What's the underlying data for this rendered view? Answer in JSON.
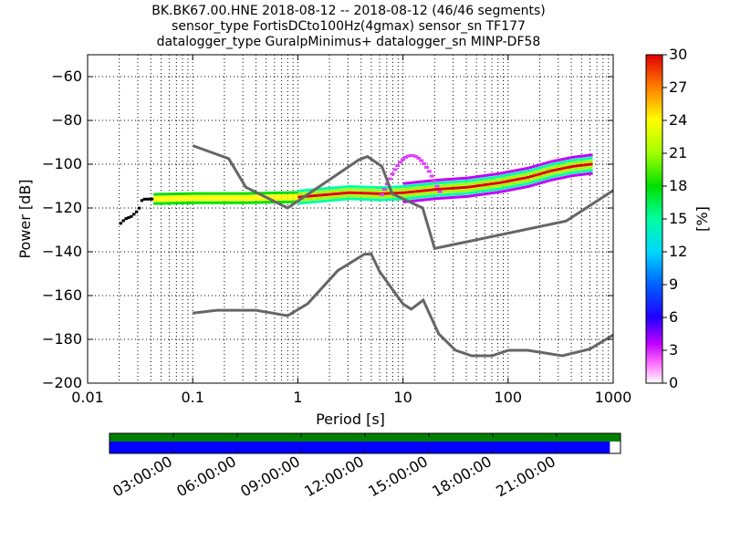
{
  "title_lines": [
    "BK.BK67.00.HNE   2018-08-12 -- 2018-08-12  (46/46 segments)",
    "sensor_type FortisDCto100Hz(4gmax) sensor_sn TF177",
    "datalogger_type GuralpMinimus+ datalogger_sn MINP-DF58"
  ],
  "chart_data": [
    {
      "type": "heatmap",
      "subtype": "probabilistic-power-spectral-density",
      "xlabel": "Period [s]",
      "ylabel": "Power [dB]",
      "xscale": "log",
      "xlim": [
        0.01,
        1000
      ],
      "ylim": [
        -200,
        -50
      ],
      "x_ticks": [
        {
          "value": 0.01,
          "label": "0.01"
        },
        {
          "value": 0.1,
          "label": "0.1"
        },
        {
          "value": 1,
          "label": "1"
        },
        {
          "value": 10,
          "label": "10"
        },
        {
          "value": 100,
          "label": "100"
        },
        {
          "value": 1000,
          "label": "1000"
        }
      ],
      "y_ticks": [
        {
          "value": -60,
          "label": "−60"
        },
        {
          "value": -80,
          "label": "−80"
        },
        {
          "value": -100,
          "label": "−100"
        },
        {
          "value": -120,
          "label": "−120"
        },
        {
          "value": -140,
          "label": "−140"
        },
        {
          "value": -160,
          "label": "−160"
        },
        {
          "value": -180,
          "label": "−180"
        },
        {
          "value": -200,
          "label": "−200"
        }
      ],
      "grid": "dotted",
      "colorbar": {
        "label": "[%]",
        "range": [
          0,
          30
        ],
        "ticks": [
          0,
          3,
          6,
          9,
          12,
          15,
          18,
          21,
          24,
          27,
          30
        ],
        "colormap": "pqlx"
      },
      "noise_models": [
        {
          "x": [
            0.1,
            0.22,
            0.32,
            0.8,
            3.8,
            4.6,
            6.3,
            7.9,
            15.4,
            20,
            354.8,
            1000
          ],
          "y": [
            -91.5,
            -97.4,
            -110.5,
            -120,
            -98,
            -96.5,
            -101,
            -113.5,
            -120,
            -138.5,
            -126,
            -112
          ]
        },
        {
          "x": [
            0.1,
            0.17,
            0.4,
            0.8,
            1.24,
            2.4,
            4.3,
            5,
            6,
            10,
            12,
            15.6,
            21.9,
            31.6,
            45,
            70,
            101,
            154,
            328,
            600,
            1000
          ],
          "y": [
            -168,
            -166.7,
            -166.7,
            -169.2,
            -163.7,
            -148.6,
            -141.1,
            -141.1,
            -149,
            -163.8,
            -166.2,
            -162.1,
            -177.5,
            -185,
            -187.5,
            -187.5,
            -185,
            -185,
            -187.5,
            -184.4,
            -178
          ]
        }
      ],
      "ppsd_ridge": [
        {
          "x": 0.02,
          "y": -127
        },
        {
          "x": 0.022,
          "y": -125
        },
        {
          "x": 0.025,
          "y": -124
        },
        {
          "x": 0.028,
          "y": -122
        },
        {
          "x": 0.03,
          "y": -120
        },
        {
          "x": 0.032,
          "y": -116
        },
        {
          "x": 0.1,
          "y": -115.5
        },
        {
          "x": 0.3,
          "y": -115.5
        },
        {
          "x": 1,
          "y": -115
        },
        {
          "x": 3,
          "y": -113
        },
        {
          "x": 6,
          "y": -113.5
        },
        {
          "x": 10,
          "y": -113
        },
        {
          "x": 20,
          "y": -111.5
        },
        {
          "x": 40,
          "y": -110.5
        },
        {
          "x": 80,
          "y": -108.5
        },
        {
          "x": 150,
          "y": -106
        },
        {
          "x": 250,
          "y": -103
        },
        {
          "x": 400,
          "y": -101
        },
        {
          "x": 600,
          "y": -100
        }
      ]
    },
    {
      "type": "timeline",
      "tick_labels": [
        "03:00:00",
        "06:00:00",
        "09:00:00",
        "12:00:00",
        "15:00:00",
        "18:00:00",
        "21:00:00"
      ],
      "tick_hours": [
        3,
        6,
        9,
        12,
        15,
        18,
        21
      ],
      "xlim_hours": [
        0,
        24
      ],
      "rows": [
        {
          "color": "#008000",
          "coverage_hours": [
            0,
            24
          ]
        },
        {
          "color": "#0000ff",
          "coverage_hours": [
            0,
            23.5
          ]
        }
      ]
    }
  ]
}
